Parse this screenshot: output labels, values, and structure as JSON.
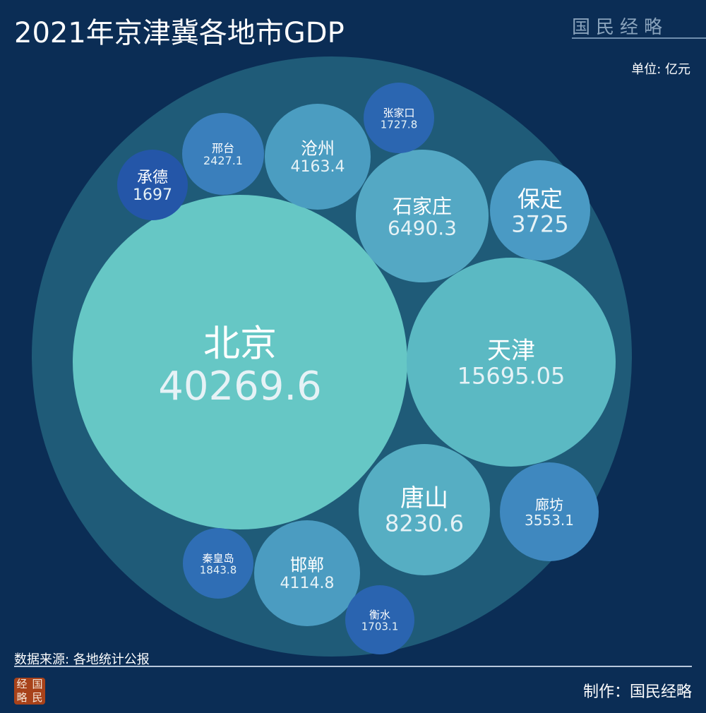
{
  "header": {
    "title": "2021年京津冀各地市GDP",
    "brand": "国民经略",
    "unit": "单位: 亿元"
  },
  "footer": {
    "source": "数据来源: 各地统计公报",
    "maker": "制作：国民经略",
    "stamp": [
      "经",
      "国",
      "略",
      "民"
    ]
  },
  "chart_data": {
    "type": "packed-bubble",
    "title": "2021年京津冀各地市GDP",
    "unit": "亿元",
    "colors": {
      "background": "#0b2d55",
      "outer": "#1f5b78"
    },
    "items": [
      {
        "name": "北京",
        "value": "40269.6",
        "color": "#66c7c5"
      },
      {
        "name": "天津",
        "value": "15695.05",
        "color": "#5bb9c3"
      },
      {
        "name": "唐山",
        "value": "8230.6",
        "color": "#56aec3"
      },
      {
        "name": "石家庄",
        "value": "6490.3",
        "color": "#54a8c4"
      },
      {
        "name": "保定",
        "value": "3725",
        "color": "#4a9ac4"
      },
      {
        "name": "廊坊",
        "value": "3553.1",
        "color": "#3f88bf"
      },
      {
        "name": "沧州",
        "value": "4163.4",
        "color": "#4b9dc1"
      },
      {
        "name": "邯郸",
        "value": "4114.8",
        "color": "#4b9cc1"
      },
      {
        "name": "邢台",
        "value": "2427.1",
        "color": "#3a7fbc"
      },
      {
        "name": "秦皇岛",
        "value": "1843.8",
        "color": "#2f6eb5"
      },
      {
        "name": "张家口",
        "value": "1727.8",
        "color": "#2b66b1"
      },
      {
        "name": "衡水",
        "value": "1703.1",
        "color": "#2a64b0"
      },
      {
        "name": "承德",
        "value": "1697",
        "color": "#2456a8"
      }
    ]
  }
}
